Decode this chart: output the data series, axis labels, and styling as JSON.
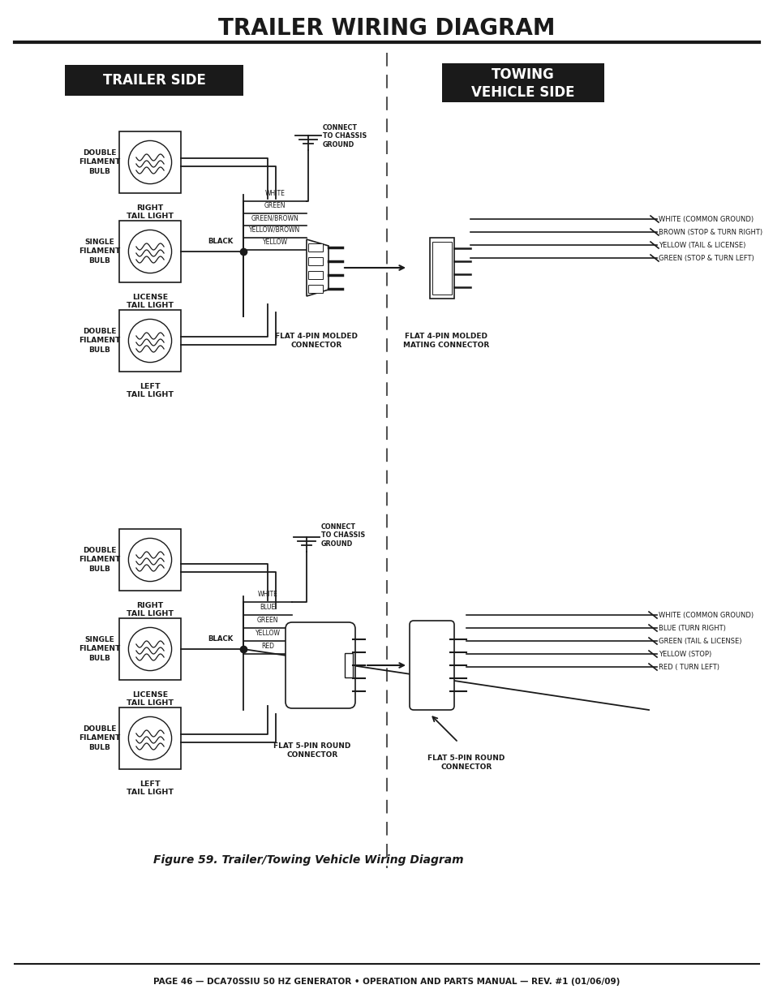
{
  "title": "TRAILER WIRING DIAGRAM",
  "bg_color": "#ffffff",
  "text_color": "#1a1a1a",
  "footer_text": "PAGE 46 — DCA70SSIU 50 HZ GENERATOR • OPERATION AND PARTS MANUAL — REV. #1 (01/06/09)",
  "caption": "Figure 59. Trailer/Towing Vehicle Wiring Diagram",
  "trailer_side_label": "TRAILER SIDE",
  "towing_side_label": "TOWING\nVEHICLE SIDE",
  "top_bulb_labels": [
    "DOUBLE\nFILAMENT\nBULB",
    "SINGLE\nFILAMENT\nBULB",
    "DOUBLE\nFILAMENT\nBULB"
  ],
  "top_sub_labels": [
    "RIGHT\nTAIL LIGHT",
    "LICENSE\nTAIL LIGHT",
    "LEFT\nTAIL LIGHT"
  ],
  "top_wire_labels": [
    "WHITE",
    "GREEN",
    "GREEN/BROWN",
    "YELLOW/BROWN",
    "YELLOW"
  ],
  "top_connector_label": "FLAT 4-PIN MOLDED\nCONNECTOR",
  "top_mating_label": "FLAT 4-PIN MOLDED\nMATING CONNECTOR",
  "top_ground_label": "CONNECT\nTO CHASSIS\nGROUND",
  "top_vehicle_wires": [
    "WHITE (COMMON GROUND)",
    "BROWN (STOP & TURN RIGHT)",
    "YELLOW (TAIL & LICENSE)",
    "GREEN (STOP & TURN LEFT)"
  ],
  "bot_bulb_labels": [
    "DOUBLE\nFILAMENT\nBULB",
    "SINGLE\nFILAMENT\nBULB",
    "DOUBLE\nFILAMENT\nBULB"
  ],
  "bot_sub_labels": [
    "RIGHT\nTAIL LIGHT",
    "LICENSE\nTAIL LIGHT",
    "LEFT\nTAIL LIGHT"
  ],
  "bot_wire_labels": [
    "WHITE",
    "BLUE",
    "GREEN",
    "YELLOW",
    "RED"
  ],
  "bot_connector_label": "FLAT 5-PIN ROUND\nCONNECTOR",
  "bot_mating_label": "FLAT 5-PIN ROUND\nCONNECTOR",
  "bot_ground_label": "CONNECT\nTO CHASSIS\nGROUND",
  "bot_vehicle_wires": [
    "WHITE (COMMON GROUND)",
    "BLUE (TURN RIGHT)",
    "GREEN (TAIL & LICENSE)",
    "YELLOW (STOP)",
    "RED ( TURN LEFT)"
  ]
}
